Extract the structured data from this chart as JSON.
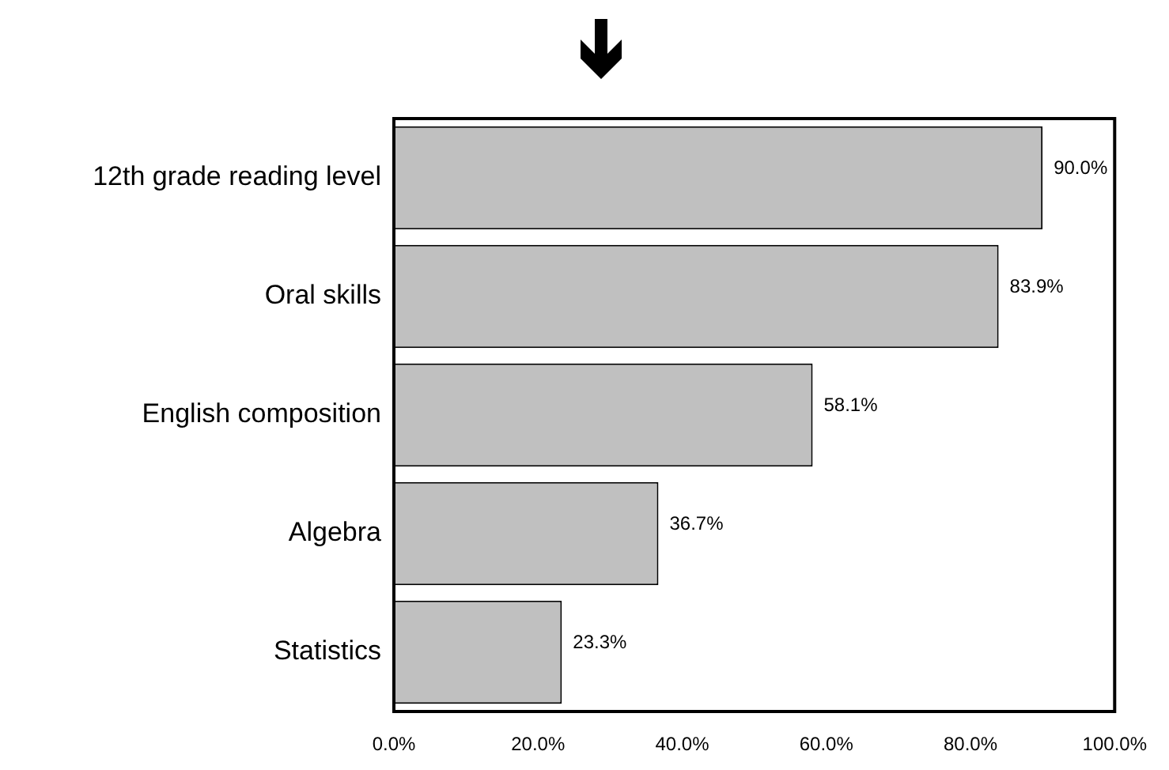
{
  "chart_data": {
    "type": "bar",
    "orientation": "horizontal",
    "categories": [
      "12th grade reading level",
      "Oral skills",
      "English composition",
      "Algebra",
      "Statistics"
    ],
    "values": [
      90.0,
      83.9,
      58.1,
      36.7,
      23.3
    ],
    "color": "#c0c0c0",
    "value_labels": [
      "90.0%",
      "83.9%",
      "58.1%",
      "36.7%",
      "23.3%"
    ],
    "xlim": [
      0,
      100
    ],
    "xticks": [
      {
        "value": 0,
        "label": "0.0%"
      },
      {
        "value": 20,
        "label": "20.0%"
      },
      {
        "value": 40,
        "label": "40.0%"
      },
      {
        "value": 60,
        "label": "60.0%"
      },
      {
        "value": 80,
        "label": "80.0%"
      },
      {
        "value": 100,
        "label": "100.0%"
      }
    ],
    "grid": false,
    "legend": false
  }
}
